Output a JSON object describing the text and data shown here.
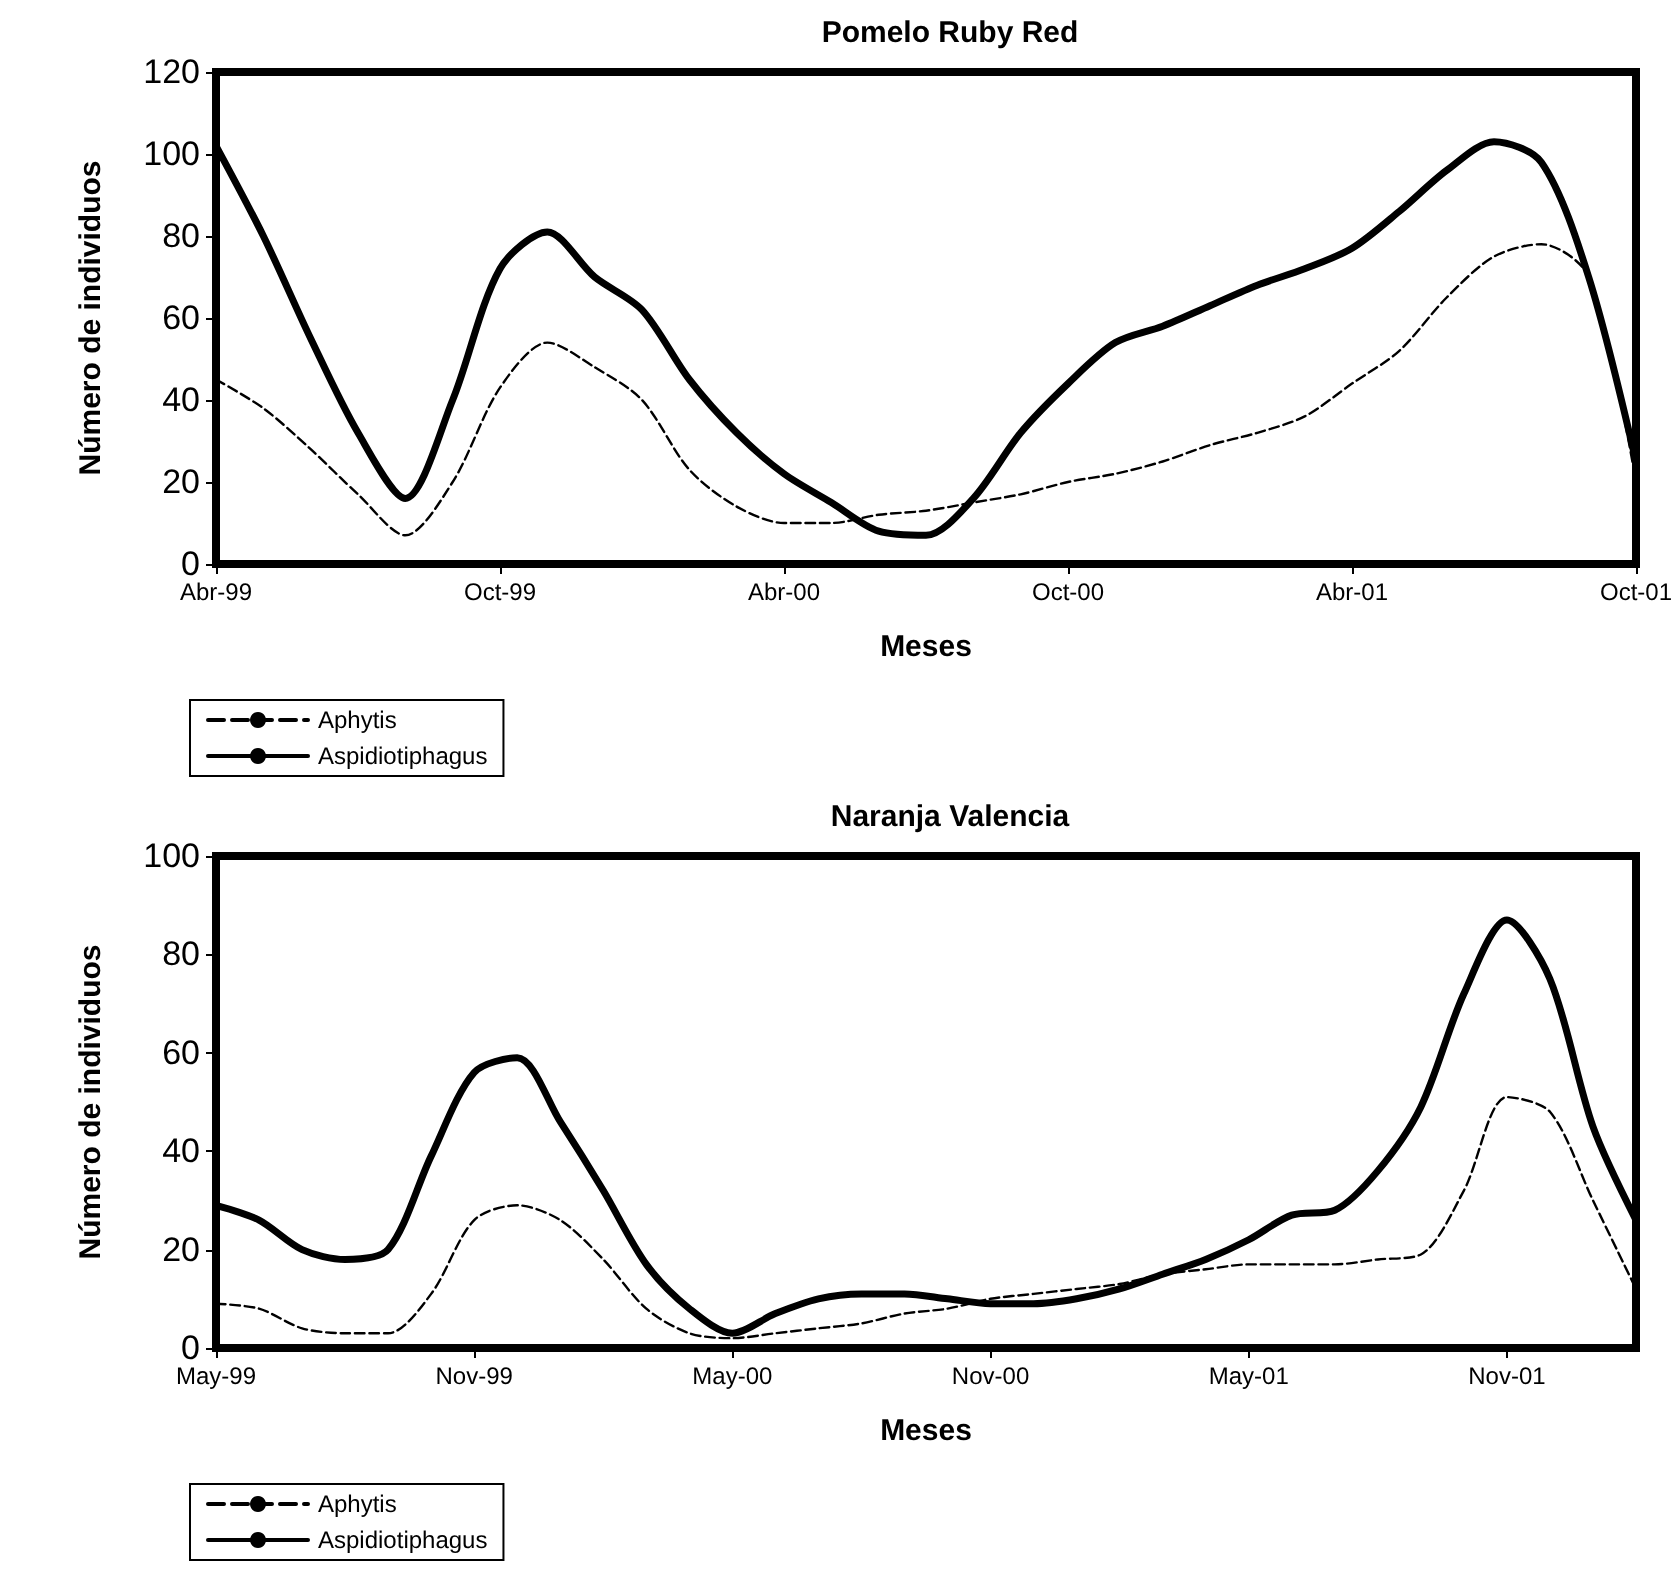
{
  "chart_data": [
    {
      "type": "line",
      "title": "Pomelo Ruby Red",
      "xlabel": "Meses",
      "ylabel": "Número de individuos",
      "x": [
        "1999-04",
        "1999-05",
        "1999-06",
        "1999-07",
        "1999-08",
        "1999-09",
        "1999-10",
        "1999-11",
        "1999-12",
        "2000-01",
        "2000-02",
        "2000-03",
        "2000-04",
        "2000-05",
        "2000-06",
        "2000-07",
        "2000-08",
        "2000-09",
        "2000-10",
        "2000-11",
        "2000-12",
        "2001-01",
        "2001-02",
        "2001-03",
        "2001-04",
        "2001-05",
        "2001-06",
        "2001-07",
        "2001-08",
        "2001-09",
        "2001-10"
      ],
      "series": [
        {
          "name": "Aphytis",
          "color": "#000000",
          "line_style": "dashed",
          "values": [
            45,
            38,
            28,
            17,
            7,
            20,
            43,
            54,
            48,
            40,
            23,
            14,
            10,
            10,
            12,
            13,
            15,
            17,
            20,
            22,
            25,
            29,
            32,
            36,
            44,
            52,
            65,
            75,
            78,
            70,
            20
          ]
        },
        {
          "name": "Aspidiotiphagus",
          "color": "#000000",
          "line_style": "solid",
          "values": [
            102,
            80,
            55,
            32,
            16,
            40,
            72,
            81,
            70,
            62,
            45,
            32,
            22,
            15,
            8,
            7,
            16,
            32,
            44,
            54,
            58,
            63,
            68,
            72,
            77,
            86,
            96,
            103,
            98,
            70,
            25
          ]
        }
      ],
      "xlim": [
        "1999-04",
        "2001-10"
      ],
      "xticks": [
        {
          "value": "1999-04",
          "label": "Abr-99"
        },
        {
          "value": "1999-10",
          "label": "Oct-99"
        },
        {
          "value": "2000-04",
          "label": "Abr-00"
        },
        {
          "value": "2000-10",
          "label": "Oct-00"
        },
        {
          "value": "2001-04",
          "label": "Abr-01"
        },
        {
          "value": "2001-10",
          "label": "Oct-01"
        }
      ],
      "ylim": [
        0,
        120
      ],
      "yticks": [
        0,
        20,
        40,
        60,
        80,
        100,
        120
      ],
      "grid": false,
      "legend": "bottom left",
      "marker": "none"
    },
    {
      "type": "line",
      "title": "Naranja Valencia",
      "xlabel": "Meses",
      "ylabel": "Número de individuos",
      "x": [
        "1999-05",
        "1999-06",
        "1999-07",
        "1999-08",
        "1999-09",
        "1999-10",
        "1999-11",
        "1999-12",
        "2000-01",
        "2000-02",
        "2000-03",
        "2000-04",
        "2000-05",
        "2000-06",
        "2000-07",
        "2000-08",
        "2000-09",
        "2000-10",
        "2000-11",
        "2000-12",
        "2001-01",
        "2001-02",
        "2001-03",
        "2001-04",
        "2001-05",
        "2001-06",
        "2001-07",
        "2001-08",
        "2001-09",
        "2001-10",
        "2001-11",
        "2001-12",
        "2002-01",
        "2002-02"
      ],
      "series": [
        {
          "name": "Aphytis",
          "color": "#000000",
          "line_style": "dashed",
          "values": [
            9,
            8,
            4,
            3,
            3,
            11,
            26,
            29,
            26,
            18,
            8,
            3,
            2,
            3,
            4,
            5,
            7,
            8,
            10,
            11,
            12,
            13,
            15,
            16,
            17,
            17,
            17,
            18,
            19,
            32,
            51,
            48,
            30,
            12
          ]
        },
        {
          "name": "Aspidiotiphagus",
          "color": "#000000",
          "line_style": "solid",
          "values": [
            29,
            26,
            20,
            18,
            20,
            39,
            56,
            59,
            46,
            32,
            17,
            8,
            3,
            7,
            10,
            11,
            11,
            10,
            9,
            9,
            10,
            12,
            15,
            18,
            22,
            27,
            28,
            36,
            49,
            72,
            87,
            75,
            45,
            26
          ]
        }
      ],
      "xlim": [
        "1999-05",
        "2002-02"
      ],
      "xticks": [
        {
          "value": "1999-05",
          "label": "May-99"
        },
        {
          "value": "1999-11",
          "label": "Nov-99"
        },
        {
          "value": "2000-05",
          "label": "May-00"
        },
        {
          "value": "2000-11",
          "label": "Nov-00"
        },
        {
          "value": "2001-05",
          "label": "May-01"
        },
        {
          "value": "2001-11",
          "label": "Nov-01"
        }
      ],
      "ylim": [
        0,
        100
      ],
      "yticks": [
        0,
        20,
        40,
        60,
        80,
        100
      ],
      "grid": false,
      "legend": "bottom left",
      "marker": "none"
    }
  ]
}
